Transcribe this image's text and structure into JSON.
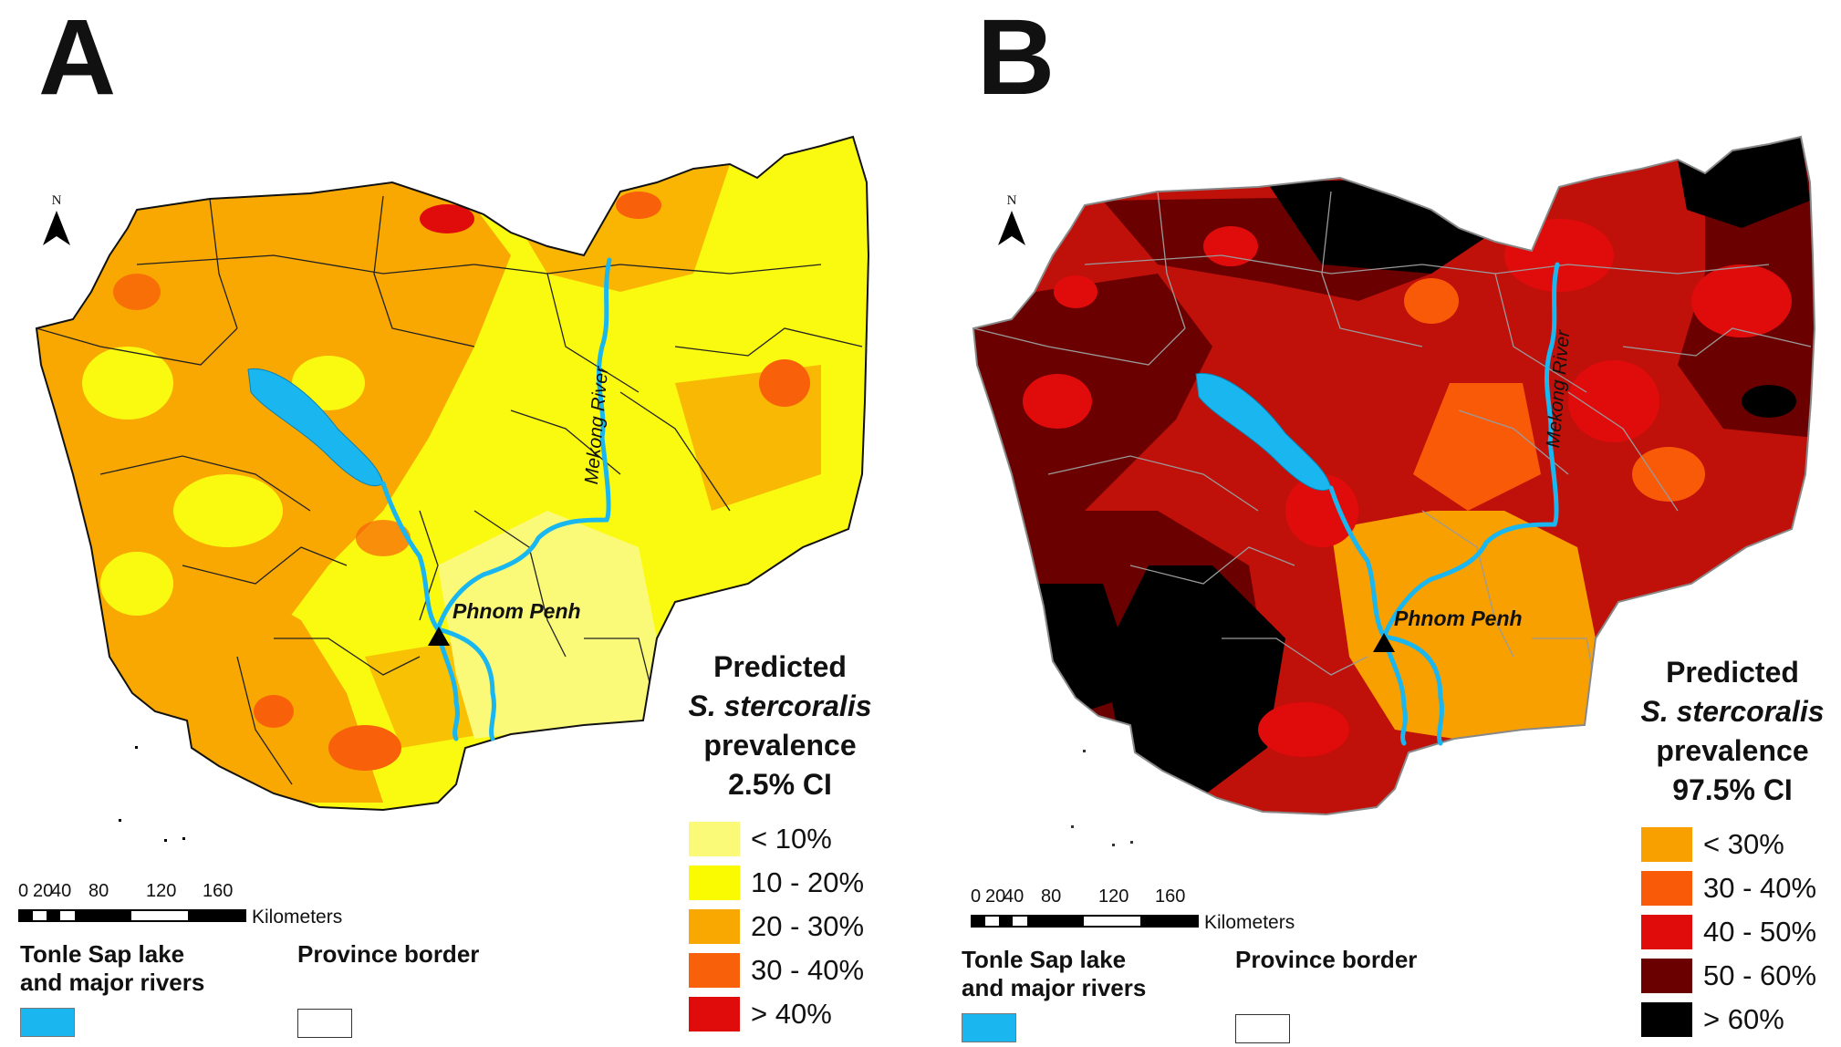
{
  "panel_a": {
    "letter": "A",
    "north_label": "N",
    "city_label": "Phnom Penh",
    "river_label": "Mekong River",
    "legend": {
      "title_line1": "Predicted",
      "title_line2": "S. stercoralis",
      "title_line3": "prevalence",
      "title_line4": "2.5% CI",
      "items": [
        {
          "label": "< 10%",
          "color": "#fafa78"
        },
        {
          "label": "10 - 20%",
          "color": "#fafa00"
        },
        {
          "label": "20 - 30%",
          "color": "#f8a800"
        },
        {
          "label": "30 - 40%",
          "color": "#f8600a"
        },
        {
          "label": "> 40%",
          "color": "#e00c0c"
        }
      ]
    },
    "scale": {
      "ticks": [
        "0",
        "20",
        "40",
        "80",
        "120",
        "160"
      ],
      "units": "Kilometers"
    },
    "lake_label_line1": "Tonle Sap lake",
    "lake_label_line2": "and major rivers",
    "border_label": "Province border",
    "colors": {
      "lake": "#19b6ef",
      "base_fill": "#fafa10",
      "border": "#222222"
    }
  },
  "panel_b": {
    "letter": "B",
    "north_label": "N",
    "city_label": "Phnom Penh",
    "river_label": "Mekong River",
    "legend": {
      "title_line1": "Predicted",
      "title_line2": "S. stercoralis",
      "title_line3": "prevalence",
      "title_line4": "97.5% CI",
      "items": [
        {
          "label": "< 30%",
          "color": "#f8a000"
        },
        {
          "label": "30 - 40%",
          "color": "#f85a08"
        },
        {
          "label": "40 - 50%",
          "color": "#e00c0c"
        },
        {
          "label": "50 - 60%",
          "color": "#6a0000"
        },
        {
          "label": "> 60%",
          "color": "#000000"
        }
      ]
    },
    "scale": {
      "ticks": [
        "0",
        "20",
        "40",
        "80",
        "120",
        "160"
      ],
      "units": "Kilometers"
    },
    "lake_label_line1": "Tonle Sap lake",
    "lake_label_line2": "and major rivers",
    "border_label": "Province border",
    "colors": {
      "lake": "#19b6ef",
      "base_fill": "#a00808",
      "border": "#9a9a9a"
    }
  }
}
